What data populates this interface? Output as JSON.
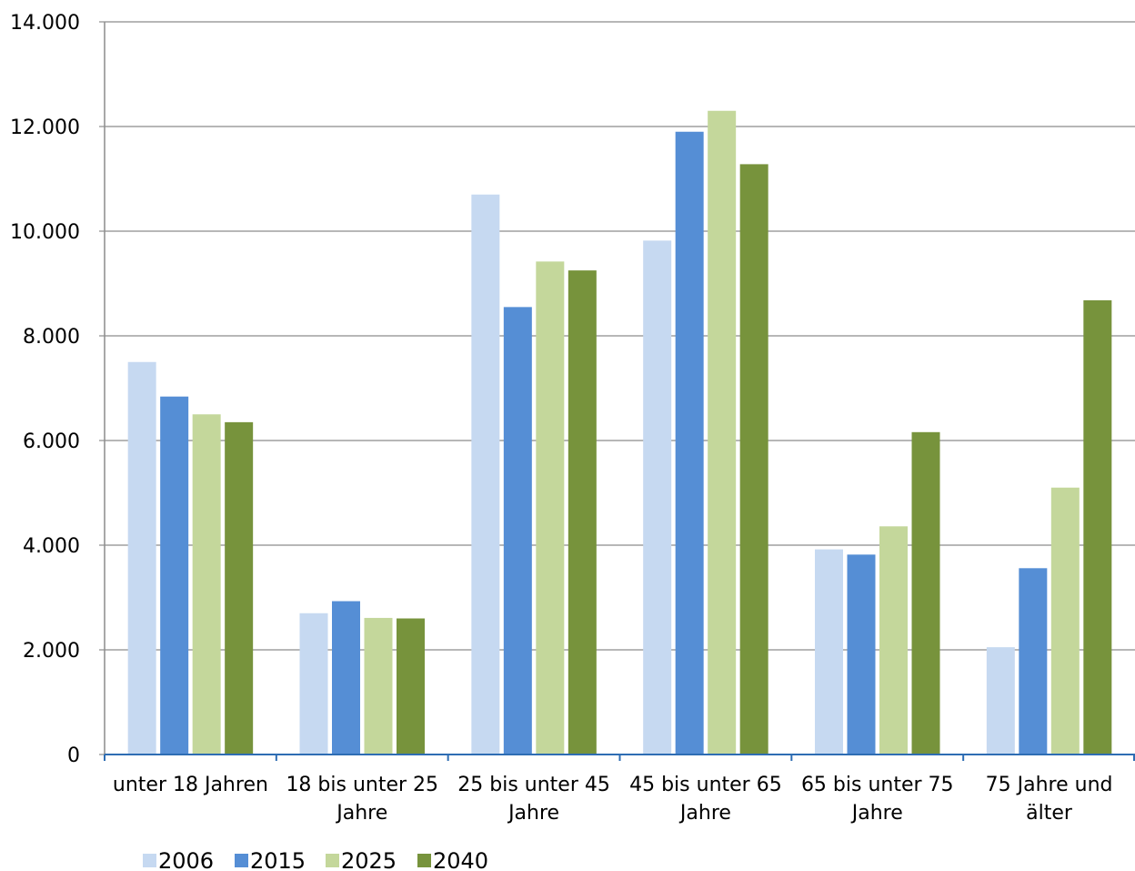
{
  "chart_data": {
    "type": "bar",
    "title": "",
    "xlabel": "",
    "ylabel": "",
    "ylim": [
      0,
      14000
    ],
    "y_ticks": [
      "0",
      "2.000",
      "4.000",
      "6.000",
      "8.000",
      "10.000",
      "12.000",
      "14.000"
    ],
    "y_tick_values": [
      0,
      2000,
      4000,
      6000,
      8000,
      10000,
      12000,
      14000
    ],
    "grid": true,
    "legend_position": "bottom-left",
    "categories": [
      [
        "unter 18 Jahren"
      ],
      [
        "18 bis unter 25",
        "Jahre"
      ],
      [
        "25 bis unter 45",
        "Jahre"
      ],
      [
        "45 bis unter 65",
        "Jahre"
      ],
      [
        "65 bis unter 75",
        "Jahre"
      ],
      [
        "75 Jahre und",
        "älter"
      ]
    ],
    "series": [
      {
        "name": "2006",
        "color": "#c6d9f1",
        "values": [
          7500,
          2700,
          10700,
          9820,
          3920,
          2050
        ]
      },
      {
        "name": "2015",
        "color": "#558ed5",
        "values": [
          6840,
          2930,
          8550,
          11900,
          3820,
          3560
        ]
      },
      {
        "name": "2025",
        "color": "#c4d79b",
        "values": [
          6500,
          2610,
          9420,
          12300,
          4360,
          5100
        ]
      },
      {
        "name": "2040",
        "color": "#77933c",
        "values": [
          6350,
          2600,
          9250,
          11280,
          6160,
          8680
        ]
      }
    ]
  }
}
